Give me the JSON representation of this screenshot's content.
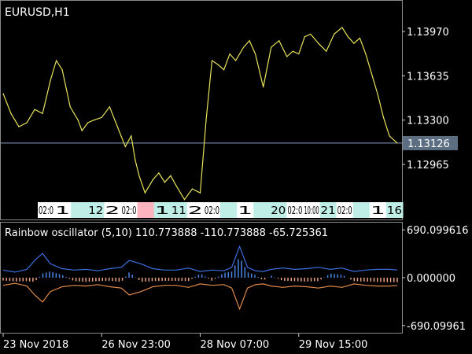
{
  "main_panel": {
    "symbol_label": "EURUSD,H1",
    "current_price_label": "1.13126",
    "y_ticks": [
      {
        "value": 1.1397,
        "label": "1.13970"
      },
      {
        "value": 1.13635,
        "label": "1.13635"
      },
      {
        "value": 1.133,
        "label": "1.13300"
      },
      {
        "value": 1.12965,
        "label": "1.12965"
      }
    ],
    "ylim": [
      1.1265,
      1.1416
    ],
    "current_price": 1.13126,
    "line_color": "#e8e25a",
    "price_line_color": "#8aa4c8",
    "price_badge_color": "#5c6e82",
    "strip_items": [
      {
        "text": "02:0",
        "bg": "#ffffff"
      },
      {
        "text": "1",
        "bg": "#ffffff"
      },
      {
        "text": "",
        "bg": "#bfeee6"
      },
      {
        "text": "12",
        "bg": "#bfeee6"
      },
      {
        "text": "2",
        "bg": "#ffffff"
      },
      {
        "text": "02:0",
        "bg": "#ffffff"
      },
      {
        "text": "",
        "bg": "#ffb3bf"
      },
      {
        "text": "1",
        "bg": "#bfeee6"
      },
      {
        "text": "11",
        "bg": "#bfeee6"
      },
      {
        "text": "2",
        "bg": "#ffffff"
      },
      {
        "text": "02:0",
        "bg": "#ffffff"
      },
      {
        "text": "",
        "bg": "#bfeee6"
      },
      {
        "text": "1",
        "bg": "#ffffff"
      },
      {
        "text": "",
        "bg": "#bfeee6"
      },
      {
        "text": "20",
        "bg": "#bfeee6"
      },
      {
        "text": "02:0",
        "bg": "#ffffff"
      },
      {
        "text": "10:00",
        "bg": "#ffffff"
      },
      {
        "text": "21",
        "bg": "#bfeee6"
      },
      {
        "text": "02:0",
        "bg": "#ffffff"
      },
      {
        "text": "",
        "bg": "#bfeee6"
      },
      {
        "text": "1",
        "bg": "#ffffff"
      },
      {
        "text": "16",
        "bg": "#bfeee6"
      }
    ]
  },
  "sub_panel": {
    "indicator_label": "Rainbow oscillator (5,10) 110.773888 -110.773888 -65.725361",
    "y_ticks": [
      {
        "value": 690.099616,
        "label": "690.099616"
      },
      {
        "value": 0,
        "label": "0.000000"
      },
      {
        "value": -690.099616,
        "label": "-690.09961"
      }
    ],
    "ylim": [
      -760,
      760
    ],
    "upper_color": "#3b6fe0",
    "lower_color": "#e08a4a",
    "hist_pos_color": "#4a86e8",
    "hist_neg_color": "#e8a080"
  },
  "time_axis": {
    "labels": [
      {
        "text": "23 Nov 2018",
        "x": 0.0
      },
      {
        "text": "26 Nov 23:00",
        "x": 0.25
      },
      {
        "text": "28 Nov 07:00",
        "x": 0.5
      },
      {
        "text": "29 Nov 15:00",
        "x": 0.75
      }
    ]
  },
  "chart_data": [
    {
      "type": "line",
      "title": "EURUSD,H1",
      "xlabel": "",
      "ylabel": "",
      "ylim": [
        1.1265,
        1.1416
      ],
      "x": [
        0.0,
        0.02,
        0.04,
        0.06,
        0.08,
        0.1,
        0.12,
        0.135,
        0.15,
        0.17,
        0.19,
        0.2,
        0.215,
        0.23,
        0.25,
        0.27,
        0.29,
        0.31,
        0.325,
        0.335,
        0.345,
        0.36,
        0.38,
        0.395,
        0.41,
        0.425,
        0.44,
        0.46,
        0.48,
        0.5,
        0.515,
        0.53,
        0.545,
        0.56,
        0.575,
        0.59,
        0.61,
        0.625,
        0.64,
        0.66,
        0.68,
        0.7,
        0.72,
        0.735,
        0.75,
        0.765,
        0.78,
        0.8,
        0.82,
        0.84,
        0.86,
        0.875,
        0.89,
        0.905,
        0.92,
        0.935,
        0.95,
        0.965,
        0.98,
        1.0
      ],
      "series": [
        {
          "values": [
            1.135,
            1.1335,
            1.1325,
            1.1328,
            1.1338,
            1.1335,
            1.136,
            1.1375,
            1.1368,
            1.134,
            1.133,
            1.1322,
            1.1328,
            1.133,
            1.1332,
            1.134,
            1.1325,
            1.131,
            1.1318,
            1.13,
            1.1288,
            1.1275,
            1.1285,
            1.129,
            1.1283,
            1.1288,
            1.128,
            1.127,
            1.1278,
            1.1275,
            1.133,
            1.1375,
            1.1372,
            1.1368,
            1.138,
            1.1375,
            1.1385,
            1.139,
            1.138,
            1.1355,
            1.1385,
            1.139,
            1.1378,
            1.1382,
            1.138,
            1.1393,
            1.1395,
            1.1388,
            1.1382,
            1.1395,
            1.14,
            1.1393,
            1.1388,
            1.1392,
            1.138,
            1.1365,
            1.135,
            1.1332,
            1.1318,
            1.13126
          ]
        }
      ]
    },
    {
      "type": "line",
      "title": "Rainbow oscillator (5,10) 110.773888 -110.773888 -65.725361",
      "xlabel": "",
      "ylabel": "",
      "ylim": [
        -760,
        760
      ],
      "x": [
        0.0,
        0.03,
        0.06,
        0.08,
        0.1,
        0.12,
        0.15,
        0.18,
        0.21,
        0.24,
        0.27,
        0.3,
        0.32,
        0.35,
        0.38,
        0.41,
        0.44,
        0.47,
        0.5,
        0.53,
        0.56,
        0.58,
        0.6,
        0.62,
        0.64,
        0.66,
        0.68,
        0.71,
        0.74,
        0.77,
        0.8,
        0.83,
        0.86,
        0.89,
        0.92,
        0.95,
        0.98,
        1.0
      ],
      "series": [
        {
          "values": [
            110,
            80,
            120,
            250,
            350,
            200,
            130,
            110,
            120,
            100,
            130,
            150,
            250,
            200,
            130,
            110,
            110,
            140,
            90,
            110,
            100,
            150,
            450,
            150,
            100,
            90,
            120,
            140,
            120,
            130,
            150,
            120,
            140,
            90,
            110,
            120,
            120,
            110.773888
          ]
        },
        {
          "values": [
            -110,
            -80,
            -120,
            -250,
            -350,
            -200,
            -130,
            -110,
            -120,
            -100,
            -130,
            -150,
            -250,
            -200,
            -130,
            -110,
            -110,
            -140,
            -90,
            -110,
            -100,
            -150,
            -450,
            -150,
            -100,
            -90,
            -120,
            -140,
            -120,
            -130,
            -150,
            -120,
            -140,
            -90,
            -110,
            -120,
            -120,
            -110.773888
          ]
        },
        {
          "values": [
            -40,
            -55,
            -50,
            -60,
            60,
            90,
            40,
            -50,
            -60,
            -50,
            -45,
            -60,
            80,
            -60,
            -50,
            -45,
            -45,
            -50,
            60,
            -45,
            70,
            90,
            300,
            80,
            40,
            -40,
            30,
            -45,
            -50,
            -55,
            -50,
            60,
            40,
            -50,
            -55,
            -60,
            -65,
            -65.725361
          ]
        }
      ]
    }
  ]
}
